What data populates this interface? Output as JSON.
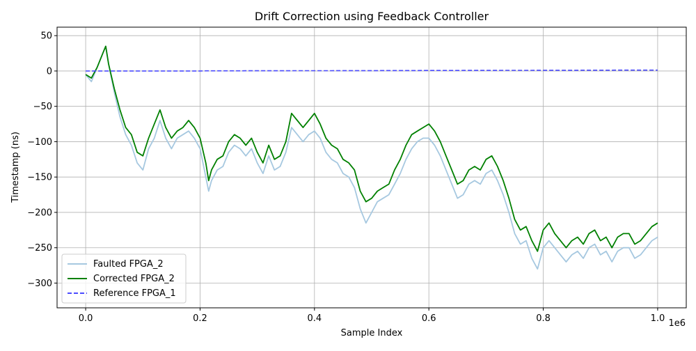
{
  "chart_data": {
    "type": "line",
    "title": "Drift Correction using Feedback Controller",
    "xlabel": "Sample Index",
    "ylabel": "Timestamp (ns)",
    "x_offset_label": "1e6",
    "xlim": [
      -50000,
      1050000
    ],
    "ylim": [
      -335,
      62
    ],
    "xticks": [
      0.0,
      0.2,
      0.4,
      0.6,
      0.8,
      1.0
    ],
    "xtick_labels": [
      "0.0",
      "0.2",
      "0.4",
      "0.6",
      "0.8",
      "1.0"
    ],
    "yticks": [
      50,
      0,
      -50,
      -100,
      -150,
      -200,
      -250,
      -300
    ],
    "ytick_labels": [
      "50",
      "0",
      "−50",
      "−100",
      "−150",
      "−200",
      "−250",
      "−300"
    ],
    "grid": true,
    "legend_position": "lower-left",
    "x": [
      0,
      10000,
      20000,
      30000,
      35000,
      40000,
      50000,
      60000,
      70000,
      80000,
      90000,
      100000,
      110000,
      120000,
      130000,
      140000,
      150000,
      160000,
      170000,
      180000,
      190000,
      200000,
      210000,
      215000,
      220000,
      230000,
      240000,
      250000,
      260000,
      270000,
      280000,
      290000,
      300000,
      310000,
      320000,
      330000,
      340000,
      350000,
      360000,
      370000,
      380000,
      390000,
      400000,
      410000,
      420000,
      430000,
      440000,
      450000,
      460000,
      470000,
      480000,
      490000,
      500000,
      510000,
      520000,
      530000,
      540000,
      550000,
      560000,
      570000,
      580000,
      590000,
      600000,
      610000,
      620000,
      630000,
      640000,
      650000,
      660000,
      670000,
      680000,
      690000,
      700000,
      710000,
      720000,
      730000,
      740000,
      750000,
      760000,
      770000,
      780000,
      790000,
      800000,
      810000,
      820000,
      830000,
      840000,
      850000,
      860000,
      870000,
      880000,
      890000,
      900000,
      910000,
      920000,
      930000,
      940000,
      950000,
      960000,
      970000,
      980000,
      990000,
      1000000
    ],
    "series": [
      {
        "name": "Faulted FPGA_2",
        "color": "#a6c8e0",
        "style": "solid",
        "y": [
          -5,
          -15,
          5,
          25,
          35,
          10,
          -30,
          -65,
          -90,
          -105,
          -130,
          -140,
          -110,
          -95,
          -70,
          -95,
          -110,
          -95,
          -90,
          -85,
          -95,
          -110,
          -150,
          -170,
          -155,
          -140,
          -135,
          -115,
          -105,
          -110,
          -120,
          -110,
          -130,
          -145,
          -120,
          -140,
          -135,
          -115,
          -80,
          -90,
          -100,
          -90,
          -85,
          -95,
          -115,
          -125,
          -130,
          -145,
          -150,
          -165,
          -195,
          -215,
          -200,
          -185,
          -180,
          -175,
          -160,
          -145,
          -125,
          -110,
          -100,
          -95,
          -95,
          -105,
          -120,
          -140,
          -160,
          -180,
          -175,
          -160,
          -155,
          -160,
          -145,
          -140,
          -155,
          -175,
          -200,
          -230,
          -245,
          -240,
          -265,
          -280,
          -250,
          -240,
          -250,
          -260,
          -270,
          -260,
          -255,
          -265,
          -250,
          -245,
          -260,
          -255,
          -270,
          -255,
          -250,
          -250,
          -265,
          -260,
          -250,
          -240,
          -235
        ]
      },
      {
        "name": "Corrected FPGA_2",
        "color": "#008000",
        "style": "solid",
        "y": [
          -5,
          -10,
          5,
          25,
          35,
          10,
          -25,
          -55,
          -80,
          -90,
          -115,
          -120,
          -95,
          -75,
          -55,
          -80,
          -95,
          -85,
          -80,
          -70,
          -80,
          -95,
          -130,
          -155,
          -140,
          -125,
          -120,
          -100,
          -90,
          -95,
          -105,
          -95,
          -115,
          -130,
          -105,
          -125,
          -120,
          -100,
          -60,
          -70,
          -80,
          -70,
          -60,
          -75,
          -95,
          -105,
          -110,
          -125,
          -130,
          -140,
          -170,
          -185,
          -180,
          -170,
          -165,
          -160,
          -140,
          -125,
          -105,
          -90,
          -85,
          -80,
          -75,
          -85,
          -100,
          -120,
          -140,
          -160,
          -155,
          -140,
          -135,
          -140,
          -125,
          -120,
          -135,
          -155,
          -180,
          -210,
          -225,
          -220,
          -240,
          -255,
          -225,
          -215,
          -230,
          -240,
          -250,
          -240,
          -235,
          -245,
          -230,
          -225,
          -240,
          -235,
          -250,
          -235,
          -230,
          -230,
          -245,
          -240,
          -230,
          -220,
          -215
        ]
      },
      {
        "name": "Reference FPGA_1",
        "color": "#4b4bff",
        "style": "dashed",
        "y": [
          0,
          0,
          0,
          0,
          0,
          0,
          0,
          0,
          0,
          0,
          0,
          0,
          0,
          0,
          0,
          0,
          0,
          0,
          0,
          0,
          0,
          0,
          0.2,
          0.2,
          0.2,
          0.2,
          0.2,
          0.2,
          0.2,
          0.2,
          0.3,
          0.3,
          0.3,
          0.3,
          0.3,
          0.3,
          0.3,
          0.3,
          0.4,
          0.4,
          0.4,
          0.4,
          0.4,
          0.4,
          0.4,
          0.4,
          0.5,
          0.5,
          0.5,
          0.5,
          0.5,
          0.5,
          0.5,
          0.5,
          0.6,
          0.6,
          0.6,
          0.6,
          0.6,
          0.6,
          0.6,
          0.7,
          0.7,
          0.7,
          0.7,
          0.7,
          0.7,
          0.7,
          0.8,
          0.8,
          0.8,
          0.8,
          0.8,
          0.8,
          0.8,
          0.9,
          0.9,
          0.9,
          0.9,
          0.9,
          0.9,
          1,
          1,
          1,
          1,
          1,
          1,
          1,
          1,
          1.1,
          1.1,
          1.1,
          1.1,
          1.1,
          1.1,
          1.2,
          1.2,
          1.2,
          1.2,
          1.2,
          1.2,
          1.2,
          1.2
        ]
      }
    ]
  }
}
